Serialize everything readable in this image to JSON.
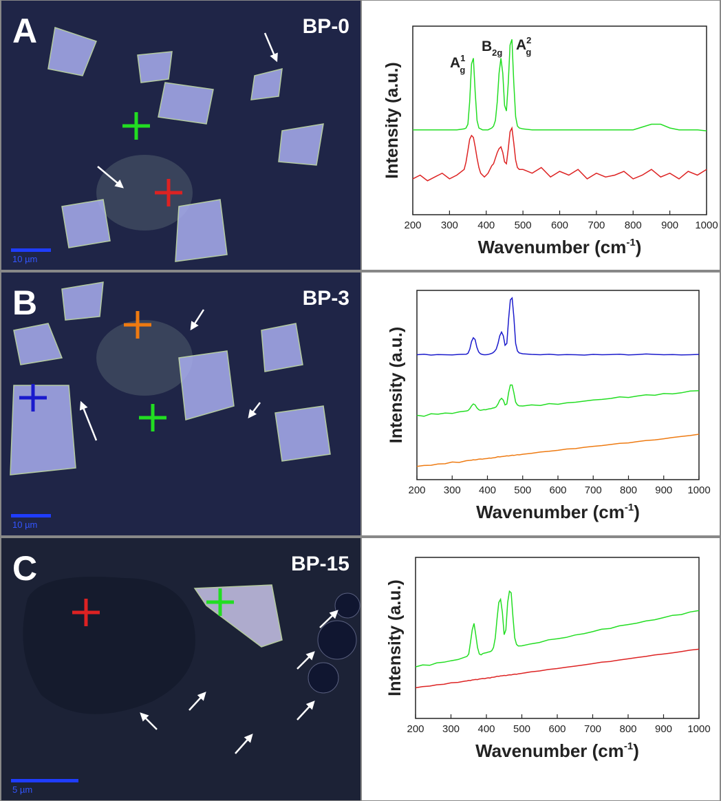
{
  "panels": [
    {
      "letter": "A",
      "sample": "BP-0",
      "scale_bar": "10 µm"
    },
    {
      "letter": "B",
      "sample": "BP-3",
      "scale_bar": "10 µm"
    },
    {
      "letter": "C",
      "sample": "BP-15",
      "scale_bar": "5 µm"
    }
  ],
  "chart_data": [
    {
      "type": "line",
      "ylabel": "Intensity (a.u.)",
      "xlabel": {
        "text": "Wavenumber (cm",
        "sup": "-1",
        "tail": ")"
      },
      "peak_labels": [
        {
          "text": "A",
          "sub": "g",
          "sup": "1"
        },
        {
          "text": "B",
          "sub": "2g"
        },
        {
          "text": "A",
          "sub": "g",
          "sup": "2"
        }
      ],
      "xlim": [
        200,
        1000
      ],
      "xticks": [
        200,
        300,
        400,
        500,
        600,
        700,
        800,
        900,
        1000
      ],
      "ylim": [
        0,
        100
      ],
      "x": [
        200,
        220,
        240,
        260,
        280,
        300,
        320,
        340,
        345,
        350,
        355,
        360,
        365,
        370,
        375,
        380,
        385,
        390,
        395,
        400,
        405,
        410,
        415,
        420,
        425,
        430,
        435,
        440,
        445,
        450,
        455,
        460,
        465,
        470,
        475,
        480,
        485,
        490,
        500,
        525,
        550,
        575,
        600,
        625,
        650,
        675,
        700,
        725,
        750,
        775,
        800,
        825,
        850,
        875,
        900,
        925,
        950,
        975,
        1000
      ],
      "series": [
        {
          "color": "#22dd22",
          "values": [
            45,
            45,
            45,
            45,
            45,
            45,
            45,
            45.5,
            46,
            48,
            60,
            80,
            83,
            65,
            50,
            46,
            45.5,
            45,
            45,
            45,
            45,
            45.5,
            46,
            47,
            50,
            60,
            75,
            83,
            75,
            58,
            55,
            70,
            90,
            93,
            70,
            52,
            47,
            46,
            45.5,
            45,
            45,
            45,
            45,
            45,
            45,
            45,
            45,
            45,
            45,
            45,
            45,
            46.5,
            48,
            48,
            46,
            45,
            45,
            45,
            44.5
          ]
        },
        {
          "color": "#dd2222",
          "values": [
            19,
            21,
            18,
            20,
            22,
            19,
            21,
            24,
            28,
            34,
            40,
            42,
            41,
            36,
            30,
            25,
            22,
            21,
            20,
            21,
            22,
            24,
            26,
            27,
            30,
            33,
            35,
            36,
            33,
            28,
            27,
            35,
            44,
            46,
            38,
            29,
            25,
            24,
            24,
            22,
            25,
            20,
            23,
            21,
            24,
            19,
            22,
            20,
            21,
            23,
            19,
            21,
            24,
            20,
            22,
            19,
            23,
            21,
            24
          ]
        }
      ]
    },
    {
      "type": "line",
      "ylabel": "Intensity (a.u.)",
      "xlabel": {
        "text": "Wavenumber   (cm",
        "sup": "-1",
        "tail": ")"
      },
      "xlim": [
        200,
        1000
      ],
      "xticks": [
        200,
        300,
        400,
        500,
        600,
        700,
        800,
        900,
        1000
      ],
      "ylim": [
        0,
        100
      ],
      "x": [
        200,
        220,
        240,
        260,
        280,
        300,
        320,
        340,
        345,
        350,
        355,
        360,
        365,
        370,
        375,
        380,
        385,
        390,
        395,
        400,
        405,
        410,
        415,
        420,
        425,
        430,
        435,
        440,
        445,
        450,
        455,
        460,
        465,
        470,
        475,
        480,
        485,
        490,
        500,
        525,
        550,
        575,
        600,
        625,
        650,
        675,
        700,
        725,
        750,
        775,
        800,
        825,
        850,
        875,
        900,
        925,
        950,
        975,
        1000
      ],
      "series": [
        {
          "color": "#1a1acc",
          "values": [
            66,
            66.3,
            65.8,
            66.1,
            66,
            65.9,
            66.2,
            66.3,
            66.8,
            69,
            73,
            75,
            74,
            70,
            67.5,
            66.5,
            66.2,
            66,
            66,
            66.1,
            66.3,
            66.6,
            67,
            67.8,
            69,
            72,
            76,
            78,
            76,
            71,
            72,
            85,
            95,
            96,
            86,
            72,
            68,
            67,
            66.5,
            66.2,
            66,
            66.3,
            65.9,
            66.1,
            66,
            65.8,
            66.2,
            66,
            66.1,
            66.3,
            65.9,
            66.1,
            66.4,
            66.2,
            66,
            66.1,
            65.9,
            66,
            66.2
          ]
        },
        {
          "color": "#22dd22",
          "values": [
            34,
            33.5,
            34.8,
            34.6,
            35.2,
            35,
            35.8,
            36.3,
            36.5,
            37.5,
            39,
            40,
            39.5,
            38,
            37,
            36.6,
            36.8,
            37,
            36.9,
            37.2,
            37.4,
            37.5,
            37.8,
            38,
            38.5,
            40,
            42,
            43,
            42,
            39.5,
            40,
            46,
            50,
            50,
            46,
            41,
            39.5,
            39,
            38.9,
            39.5,
            39.2,
            40.2,
            39.8,
            40.6,
            40.9,
            41.5,
            42.1,
            42.4,
            42.9,
            43.7,
            43.4,
            44.2,
            44.8,
            44.6,
            45.5,
            45.3,
            45.9,
            46.8,
            47
          ]
        },
        {
          "color": "#ee7a11",
          "values": [
            7,
            7.5,
            7.6,
            8.3,
            8.4,
            9.3,
            9.1,
            10,
            10.1,
            10.2,
            10.3,
            10.5,
            10.4,
            10.6,
            10.8,
            10.9,
            10.8,
            11,
            11.1,
            11.2,
            11.4,
            11.3,
            11.5,
            11.6,
            11.8,
            12.1,
            12,
            12.2,
            12.3,
            12.4,
            12.6,
            12.5,
            12.7,
            12.9,
            12.8,
            13,
            13.2,
            13.1,
            13.4,
            13.9,
            14.6,
            15,
            15.5,
            16.2,
            16.4,
            17.1,
            17.6,
            18,
            18.6,
            19.2,
            19.4,
            20.1,
            20.7,
            21,
            21.6,
            22.3,
            22.8,
            23.3,
            24
          ]
        }
      ]
    },
    {
      "type": "line",
      "ylabel": "Intensity (a.u.)",
      "xlabel": {
        "text": "Wavenumber  (cm",
        "sup": "-1",
        "tail": ")"
      },
      "xlim": [
        200,
        1000
      ],
      "xticks": [
        200,
        300,
        400,
        500,
        600,
        700,
        800,
        900,
        1000
      ],
      "ylim": [
        0,
        100
      ],
      "x": [
        200,
        220,
        240,
        260,
        280,
        300,
        320,
        340,
        345,
        350,
        355,
        360,
        365,
        370,
        375,
        380,
        385,
        390,
        395,
        400,
        405,
        410,
        415,
        420,
        425,
        430,
        435,
        440,
        445,
        450,
        455,
        460,
        465,
        470,
        475,
        480,
        485,
        490,
        500,
        525,
        550,
        575,
        600,
        625,
        650,
        675,
        700,
        725,
        750,
        775,
        800,
        825,
        850,
        875,
        900,
        925,
        950,
        975,
        1000
      ],
      "series": [
        {
          "color": "#22dd22",
          "values": [
            32,
            33.2,
            33,
            34.5,
            34.9,
            35.8,
            36.6,
            38.1,
            38.5,
            40,
            47,
            55,
            59,
            52,
            44,
            40,
            39.5,
            40.3,
            40.6,
            40.8,
            41.2,
            41.4,
            42,
            44,
            50,
            62,
            72,
            74,
            66,
            52,
            55,
            72,
            79,
            78,
            63,
            50,
            46,
            45,
            45.1,
            46.3,
            47.2,
            48.8,
            49.5,
            50.3,
            51.8,
            52.6,
            53.9,
            55.4,
            55.9,
            57.5,
            58.3,
            59.2,
            60.5,
            61.3,
            62.6,
            64,
            64.5,
            66.1,
            67
          ]
        },
        {
          "color": "#dd2222",
          "values": [
            19,
            19.8,
            20.1,
            20.9,
            21.2,
            22.1,
            22.4,
            23.2,
            23.3,
            23.6,
            23.5,
            23.9,
            24,
            24.2,
            24.1,
            24.5,
            24.6,
            24.8,
            24.7,
            25,
            25.2,
            25.1,
            25.5,
            25.6,
            25.8,
            26.2,
            26.1,
            26.4,
            26.5,
            26.7,
            26.6,
            26.9,
            27.1,
            27,
            27.3,
            27.5,
            27.4,
            27.7,
            28,
            28.9,
            29.5,
            30.4,
            31,
            31.8,
            32.5,
            33.2,
            34,
            34.9,
            35.4,
            36.3,
            37,
            37.8,
            38.5,
            39.4,
            40,
            40.7,
            41.5,
            42.4,
            43
          ]
        }
      ]
    }
  ]
}
